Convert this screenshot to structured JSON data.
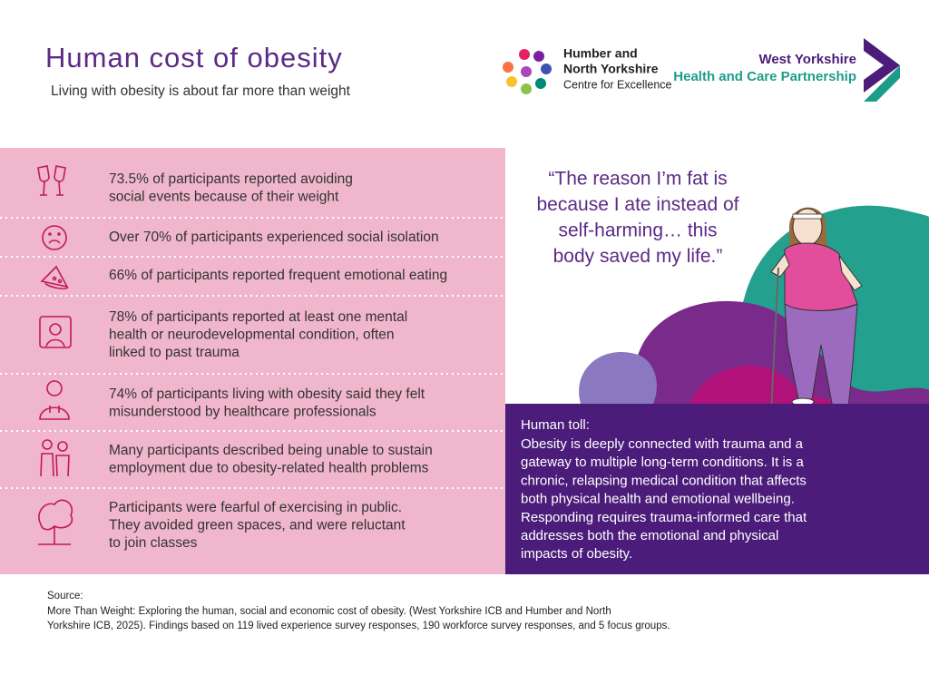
{
  "header": {
    "title": "Human cost of obesity",
    "subtitle": "Living with obesity is about far more than weight"
  },
  "logos": [
    {
      "lines": [
        "Humber and",
        "North Yorkshire",
        "Centre for Excellence"
      ]
    },
    {
      "lines": [
        "West Yorkshire",
        "Health and Care Partnership"
      ]
    }
  ],
  "stats": [
    {
      "lines": [
        "73.5% of participants reported avoiding",
        "social events because of their weight"
      ]
    },
    {
      "lines": [
        "Over 70% of participants experienced social isolation"
      ]
    },
    {
      "lines": [
        "66% of participants reported frequent emotional eating"
      ]
    },
    {
      "lines": [
        "78% of participants reported at least one mental",
        "health or neurodevelopmental condition, often",
        "linked to past trauma"
      ]
    },
    {
      "lines": [
        "74% of participants living with obesity said they felt",
        "misunderstood by healthcare professionals"
      ]
    },
    {
      "lines": [
        "Many participants described being unable to sustain",
        "employment due to obesity-related health problems"
      ]
    },
    {
      "lines": [
        "Participants were fearful of exercising in public.",
        "They avoided green spaces, and were reluctant",
        "to join classes"
      ]
    }
  ],
  "quote": {
    "lines": [
      "“The reason I’m fat is",
      "because I ate instead of",
      "self-harming… this",
      "body saved my life.”"
    ]
  },
  "toll": {
    "heading": "Human toll:",
    "lines": [
      "Obesity is deeply connected with trauma and a",
      "gateway to multiple long-term conditions. It is a",
      "chronic, relapsing medical condition that affects",
      "both physical health and emotional wellbeing.",
      "Responding requires trauma-informed care that",
      "addresses both the emotional and physical",
      "impacts of obesity."
    ]
  },
  "source": {
    "heading": "Source:",
    "lines": [
      "More Than Weight: Exploring the human, social and economic cost of obesity. (West Yorkshire ICB and Humber and North",
      "Yorkshire ICB, 2025). Findings based on 119 lived experience survey responses, 190 workforce survey responses, and 5 focus groups."
    ]
  }
}
